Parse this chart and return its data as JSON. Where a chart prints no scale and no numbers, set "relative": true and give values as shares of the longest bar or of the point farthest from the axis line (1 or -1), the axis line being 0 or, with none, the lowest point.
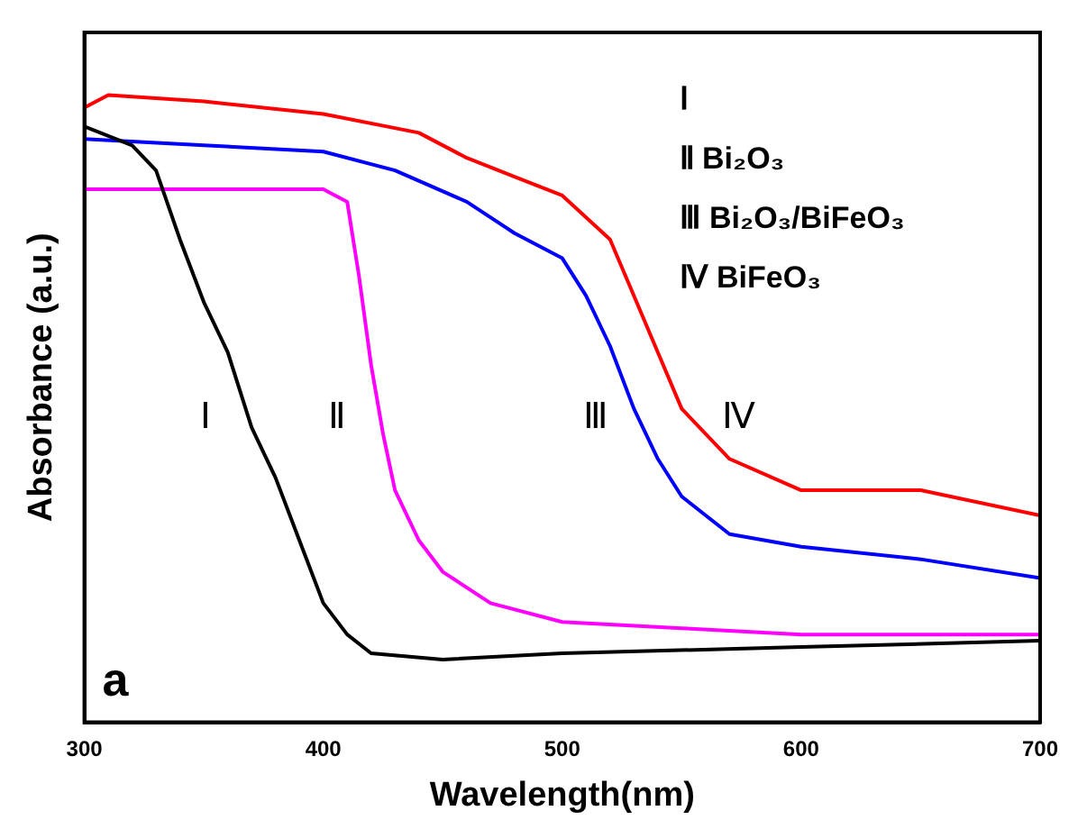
{
  "chart_data": {
    "type": "line",
    "xlabel": "Wavelength(nm)",
    "ylabel": "Absorbance (a.u.)",
    "relative": true,
    "xlim": [
      300,
      700
    ],
    "xticks": [
      300,
      400,
      500,
      600,
      700
    ],
    "grid": false,
    "legend": false,
    "marker": "none",
    "line_style": "solid",
    "series": [
      {
        "name": "Ⅰ",
        "color": "#000000",
        "x": [
          300,
          320,
          330,
          340,
          350,
          360,
          370,
          380,
          390,
          400,
          410,
          420,
          450,
          500,
          600,
          700
        ],
        "values": [
          0.95,
          0.92,
          0.88,
          0.77,
          0.67,
          0.59,
          0.47,
          0.39,
          0.29,
          0.19,
          0.14,
          0.11,
          0.1,
          0.11,
          0.12,
          0.13
        ]
      },
      {
        "name": "Ⅱ",
        "color": "#ff00ff",
        "x": [
          300,
          400,
          410,
          415,
          420,
          425,
          430,
          440,
          450,
          470,
          500,
          550,
          600,
          700
        ],
        "values": [
          0.85,
          0.85,
          0.83,
          0.71,
          0.57,
          0.46,
          0.37,
          0.29,
          0.24,
          0.19,
          0.16,
          0.15,
          0.14,
          0.14
        ]
      },
      {
        "name": "Ⅲ",
        "color": "#0000ff",
        "x": [
          300,
          350,
          400,
          430,
          460,
          480,
          500,
          510,
          520,
          530,
          540,
          550,
          570,
          600,
          650,
          700
        ],
        "values": [
          0.93,
          0.92,
          0.91,
          0.88,
          0.83,
          0.78,
          0.74,
          0.68,
          0.6,
          0.5,
          0.42,
          0.36,
          0.3,
          0.28,
          0.26,
          0.23
        ]
      },
      {
        "name": "Ⅳ",
        "color": "#ff0000",
        "x": [
          300,
          310,
          350,
          400,
          440,
          460,
          480,
          500,
          520,
          530,
          540,
          550,
          570,
          600,
          650,
          700
        ],
        "values": [
          0.98,
          1,
          0.99,
          0.97,
          0.94,
          0.9,
          0.87,
          0.84,
          0.77,
          0.68,
          0.59,
          0.5,
          0.42,
          0.37,
          0.37,
          0.33
        ]
      }
    ],
    "annotations": [
      "Ⅰ",
      "Ⅱ Bi₂O₃",
      "Ⅲ Bi₂O₃/BiFeO₃",
      "Ⅳ BiFeO₃",
      "a"
    ]
  }
}
